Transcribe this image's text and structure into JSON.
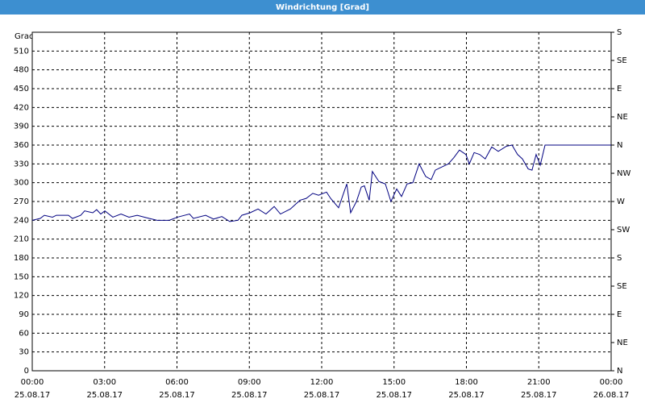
{
  "chart_data": {
    "type": "line",
    "title": "Windrichtung [Grad]",
    "y_label": "Grad",
    "xlim": [
      0,
      24
    ],
    "xticks": [
      {
        "value": 0,
        "label": "00:00"
      },
      {
        "value": 3,
        "label": "03:00"
      },
      {
        "value": 6,
        "label": "06:00"
      },
      {
        "value": 9,
        "label": "09:00"
      },
      {
        "value": 12,
        "label": "12:00"
      },
      {
        "value": 15,
        "label": "15:00"
      },
      {
        "value": 18,
        "label": "18:00"
      },
      {
        "value": 21,
        "label": "21:00"
      },
      {
        "value": 24,
        "label": "00:00"
      }
    ],
    "xtick_dates": [
      "25.08.17",
      "25.08.17",
      "25.08.17",
      "25.08.17",
      "25.08.17",
      "25.08.17",
      "25.08.17",
      "25.08.17",
      "26.08.17"
    ],
    "ylim": [
      0,
      540
    ],
    "yticks": [
      0,
      30,
      60,
      90,
      120,
      150,
      180,
      210,
      240,
      270,
      300,
      330,
      360,
      390,
      420,
      450,
      480,
      510
    ],
    "y2lim": [
      0,
      540
    ],
    "y2ticks": [
      {
        "value": 0,
        "label": "N"
      },
      {
        "value": 45,
        "label": "NE"
      },
      {
        "value": 90,
        "label": "E"
      },
      {
        "value": 135,
        "label": "SE"
      },
      {
        "value": 180,
        "label": "S"
      },
      {
        "value": 225,
        "label": "SW"
      },
      {
        "value": 270,
        "label": "W"
      },
      {
        "value": 315,
        "label": "NW"
      },
      {
        "value": 360,
        "label": "N"
      },
      {
        "value": 405,
        "label": "NE"
      },
      {
        "value": 450,
        "label": "E"
      },
      {
        "value": 495,
        "label": "SE"
      },
      {
        "value": 540,
        "label": "S"
      }
    ],
    "grid": true,
    "x": [
      0,
      0.33,
      0.5,
      0.84,
      1.0,
      1.5,
      1.67,
      2.01,
      2.17,
      2.51,
      2.67,
      2.84,
      3.01,
      3.34,
      3.68,
      4.01,
      4.35,
      4.85,
      5.18,
      5.68,
      6.02,
      6.52,
      6.68,
      7.19,
      7.52,
      7.86,
      8.19,
      8.53,
      8.69,
      9.03,
      9.36,
      9.69,
      10.03,
      10.29,
      10.7,
      11.1,
      11.36,
      11.63,
      11.87,
      12.2,
      12.37,
      12.7,
      13.04,
      13.2,
      13.44,
      13.64,
      13.77,
      13.97,
      14.1,
      14.37,
      14.64,
      14.87,
      15.11,
      15.31,
      15.54,
      15.78,
      16.04,
      16.31,
      16.54,
      16.71,
      16.98,
      17.25,
      17.48,
      17.71,
      17.98,
      18.12,
      18.32,
      18.55,
      18.78,
      19.05,
      19.32,
      19.65,
      19.89,
      20.12,
      20.32,
      20.56,
      20.72,
      20.89,
      21.06,
      21.26,
      24
    ],
    "series": [
      {
        "color": "#000080",
        "values": [
          240,
          243,
          248,
          245,
          248,
          248,
          243,
          248,
          255,
          252,
          257,
          250,
          255,
          245,
          250,
          245,
          248,
          243,
          240,
          240,
          245,
          250,
          243,
          248,
          242,
          246,
          238,
          240,
          248,
          252,
          258,
          250,
          262,
          250,
          258,
          272,
          275,
          283,
          280,
          285,
          275,
          260,
          298,
          252,
          270,
          293,
          295,
          272,
          318,
          302,
          298,
          270,
          290,
          278,
          298,
          300,
          330,
          310,
          305,
          320,
          325,
          330,
          340,
          352,
          345,
          330,
          348,
          345,
          338,
          357,
          350,
          358,
          360,
          345,
          338,
          322,
          320,
          345,
          328,
          360,
          360
        ]
      }
    ]
  }
}
